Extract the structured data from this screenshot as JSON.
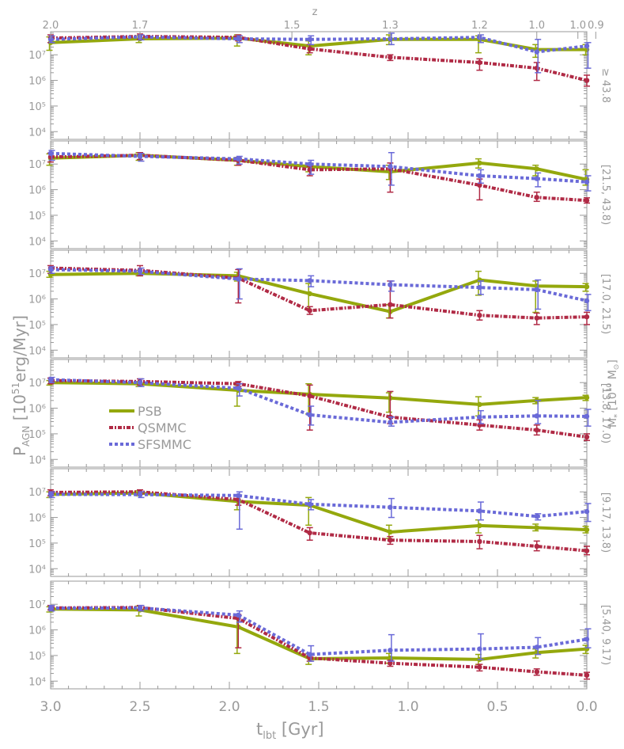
{
  "figure": {
    "y_axis_label_main": "P",
    "y_axis_label_sub": "AGN",
    "y_axis_label_rest_a": " [10",
    "y_axis_label_sup": "51",
    "y_axis_label_rest_b": "erg/Myr]",
    "x_axis_label_main": "t",
    "x_axis_label_sub": "lbt",
    "x_axis_label_rest": " [Gyr]",
    "top_axis_label": "z",
    "mass_label_main": "M",
    "mass_label_sub": "*",
    "mass_label_rest": " [10",
    "mass_label_sup": "10",
    "mass_label_unit": " M",
    "mass_label_sun": "⊙",
    "mass_label_close": "]",
    "colors": {
      "axis": "#999999",
      "PSB": "#94a80d",
      "QSMMC": "#b02a45",
      "SFSMMC": "#6a6ad8"
    }
  },
  "chart_data": {
    "type": "line",
    "x_label": "t_lbt [Gyr]",
    "y_label": "P_AGN [10^51 erg/Myr]",
    "side_label": "M_* [10^10 M_sun]",
    "x_range": [
      3.0,
      0.0
    ],
    "x_ticks": [
      "3.0",
      "2.5",
      "2.0",
      "1.5",
      "1.0",
      "0.5",
      "0.0"
    ],
    "x_tick_values": [
      3.0,
      2.5,
      2.0,
      1.5,
      1.0,
      0.5,
      0.0
    ],
    "top_axis": {
      "label": "z",
      "ticks": [
        {
          "t": 3.0,
          "label": "2.0"
        },
        {
          "t": 2.5,
          "label": "1.7"
        },
        {
          "t": 1.65,
          "label": "1.5"
        },
        {
          "t": 1.1,
          "label": "1.3"
        },
        {
          "t": 0.6,
          "label": "1.2"
        },
        {
          "t": 0.28,
          "label": "1.0"
        },
        {
          "t": 0.05,
          "label": "1.0"
        },
        {
          "t": -0.05,
          "label": "0.9"
        }
      ]
    },
    "y_scale": "log",
    "y_range": [
      5000,
      80000000
    ],
    "y_ticks": [
      "10⁴",
      "10⁵",
      "10⁶",
      "10⁷"
    ],
    "y_tick_values": [
      10000,
      100000,
      1000000,
      10000000
    ],
    "legend": {
      "placement": "middle-left (panel 4)",
      "entries": [
        "PSB",
        "QSMMC",
        "SFSMMC"
      ]
    },
    "x": [
      3.0,
      2.5,
      1.95,
      1.55,
      1.1,
      0.6,
      0.28,
      0.0
    ],
    "panels": [
      {
        "mass_bin": "≥ 43.8",
        "series": [
          {
            "name": "PSB",
            "values": [
              30000000,
              42000000,
              45000000,
              22000000,
              40000000,
              40000000,
              16000000,
              16000000
            ],
            "err": [
              [
                15000000,
                50000000
              ],
              [
                30000000,
                55000000
              ],
              [
                22000000,
                60000000
              ],
              [
                10000000,
                35000000
              ],
              [
                25000000,
                60000000
              ],
              [
                12000000,
                55000000
              ],
              [
                8000000,
                25000000
              ],
              [
                10000000,
                25000000
              ]
            ]
          },
          {
            "name": "QSMMC",
            "values": [
              45000000,
              52000000,
              48000000,
              17000000,
              8000000,
              5000000,
              3000000,
              1000000
            ],
            "err": [
              [
                30000000,
                60000000
              ],
              [
                40000000,
                65000000
              ],
              [
                35000000,
                60000000
              ],
              [
                12000000,
                25000000
              ],
              [
                6000000,
                10000000
              ],
              [
                2500000,
                7000000
              ],
              [
                1000000,
                5000000
              ],
              [
                600000,
                1600000
              ]
            ]
          },
          {
            "name": "SFSMMC",
            "values": [
              40000000,
              50000000,
              42000000,
              40000000,
              42000000,
              48000000,
              13000000,
              22000000
            ],
            "err": [
              [
                30000000,
                55000000
              ],
              [
                38000000,
                60000000
              ],
              [
                30000000,
                55000000
              ],
              [
                25000000,
                55000000
              ],
              [
                25000000,
                70000000
              ],
              [
                30000000,
                60000000
              ],
              [
                2000000,
                40000000
              ],
              [
                3000000,
                30000000
              ]
            ]
          }
        ]
      },
      {
        "mass_bin": "[21.5, 43.8)",
        "series": [
          {
            "name": "PSB",
            "values": [
              17000000,
              22000000,
              14000000,
              8000000,
              5000000,
              11000000,
              6500000,
              2500000
            ],
            "err": [
              [
                9000000,
                25000000
              ],
              [
                14000000,
                28000000
              ],
              [
                9000000,
                18000000
              ],
              [
                5000000,
                11000000
              ],
              [
                2500000,
                9000000
              ],
              [
                7000000,
                16000000
              ],
              [
                3500000,
                9000000
              ],
              [
                1500000,
                6000000
              ]
            ]
          },
          {
            "name": "QSMMC",
            "values": [
              19000000,
              22000000,
              14000000,
              6000000,
              6500000,
              1500000,
              500000,
              380000
            ],
            "err": [
              [
                12000000,
                27000000
              ],
              [
                15000000,
                28000000
              ],
              [
                9000000,
                18000000
              ],
              [
                3500000,
                8000000
              ],
              [
                800000,
                11000000
              ],
              [
                400000,
                2600000
              ],
              [
                350000,
                800000
              ],
              [
                300000,
                480000
              ]
            ]
          },
          {
            "name": "SFSMMC",
            "values": [
              26000000,
              20000000,
              16000000,
              10000000,
              8000000,
              3500000,
              2700000,
              2000000
            ],
            "err": [
              [
                14000000,
                34000000
              ],
              [
                13000000,
                26000000
              ],
              [
                10000000,
                20000000
              ],
              [
                4000000,
                14000000
              ],
              [
                1500000,
                28000000
              ],
              [
                1800000,
                6000000
              ],
              [
                1300000,
                4500000
              ],
              [
                900000,
                3500000
              ]
            ]
          }
        ]
      },
      {
        "mass_bin": "[17.0, 21.5)",
        "series": [
          {
            "name": "PSB",
            "values": [
              9000000,
              10000000,
              8000000,
              1600000,
              320000,
              5500000,
              3200000,
              3000000
            ],
            "err": [
              [
                7000000,
                12000000
              ],
              [
                8000000,
                13000000
              ],
              [
                5000000,
                11000000
              ],
              [
                400000,
                4000000
              ],
              [
                180000,
                600000
              ],
              [
                1400000,
                12000000
              ],
              [
                300000,
                5000000
              ],
              [
                2000000,
                4000000
              ]
            ]
          },
          {
            "name": "QSMMC",
            "values": [
              16000000,
              13000000,
              6500000,
              350000,
              600000,
              230000,
              180000,
              200000
            ],
            "err": [
              [
                10000000,
                20000000
              ],
              [
                8000000,
                20000000
              ],
              [
                700000,
                14000000
              ],
              [
                250000,
                500000
              ],
              [
                180000,
                5000000
              ],
              [
                150000,
                350000
              ],
              [
                100000,
                280000
              ],
              [
                100000,
                300000
              ]
            ]
          },
          {
            "name": "SFSMMC",
            "values": [
              14000000,
              12000000,
              6000000,
              5200000,
              3600000,
              2800000,
              2300000,
              850000
            ],
            "err": [
              [
                10000000,
                18000000
              ],
              [
                9000000,
                16000000
              ],
              [
                1000000,
                15000000
              ],
              [
                3000000,
                8000000
              ],
              [
                2000000,
                5000000
              ],
              [
                1500000,
                5000000
              ],
              [
                400000,
                5500000
              ],
              [
                350000,
                1500000
              ]
            ]
          }
        ]
      },
      {
        "mass_bin": "[13.8, 17.0)",
        "series": [
          {
            "name": "PSB",
            "values": [
              10000000,
              9000000,
              5000000,
              3500000,
              2500000,
              1400000,
              2000000,
              2600000
            ],
            "err": [
              [
                8000000,
                12000000
              ],
              [
                7000000,
                11000000
              ],
              [
                1200000,
                8000000
              ],
              [
                600000,
                9000000
              ],
              [
                700000,
                4000000
              ],
              [
                500000,
                2800000
              ],
              [
                1500000,
                2600000
              ],
              [
                2000000,
                3200000
              ]
            ]
          },
          {
            "name": "QSMMC",
            "values": [
              12000000,
              11000000,
              9000000,
              3000000,
              450000,
              220000,
              140000,
              75000
            ],
            "err": [
              [
                9000000,
                15000000
              ],
              [
                8000000,
                14000000
              ],
              [
                7000000,
                11000000
              ],
              [
                140000,
                8000000
              ],
              [
                250000,
                4500000
              ],
              [
                140000,
                350000
              ],
              [
                90000,
                220000
              ],
              [
                55000,
                100000
              ]
            ]
          },
          {
            "name": "SFSMMC",
            "values": [
              13000000,
              10000000,
              6000000,
              550000,
              280000,
              450000,
              500000,
              480000
            ],
            "err": [
              [
                10000000,
                16000000
              ],
              [
                7000000,
                14000000
              ],
              [
                3000000,
                9000000
              ],
              [
                220000,
                1200000
              ],
              [
                200000,
                450000
              ],
              [
                250000,
                800000
              ],
              [
                250000,
                2000000
              ],
              [
                200000,
                900000
              ]
            ]
          }
        ]
      },
      {
        "mass_bin": "[9.17, 13.8)",
        "series": [
          {
            "name": "PSB",
            "values": [
              8000000,
              9000000,
              4200000,
              3000000,
              270000,
              480000,
              400000,
              330000
            ],
            "err": [
              [
                6000000,
                10000000
              ],
              [
                7000000,
                11000000
              ],
              [
                2000000,
                7000000
              ],
              [
                500000,
                6000000
              ],
              [
                150000,
                500000
              ],
              [
                250000,
                800000
              ],
              [
                300000,
                550000
              ],
              [
                250000,
                450000
              ]
            ]
          },
          {
            "name": "QSMMC",
            "values": [
              9500000,
              10000000,
              5000000,
              250000,
              130000,
              115000,
              75000,
              50000
            ],
            "err": [
              [
                7000000,
                12000000
              ],
              [
                8000000,
                12000000
              ],
              [
                3000000,
                7000000
              ],
              [
                130000,
                400000
              ],
              [
                90000,
                180000
              ],
              [
                60000,
                200000
              ],
              [
                50000,
                120000
              ],
              [
                35000,
                75000
              ]
            ]
          },
          {
            "name": "SFSMMC",
            "values": [
              8000000,
              7800000,
              7200000,
              3300000,
              2500000,
              1800000,
              1100000,
              1700000
            ],
            "err": [
              [
                6000000,
                10000000
              ],
              [
                6000000,
                10000000
              ],
              [
                350000,
                10000000
              ],
              [
                2000000,
                5000000
              ],
              [
                1000000,
                5500000
              ],
              [
                800000,
                4000000
              ],
              [
                800000,
                1400000
              ],
              [
                700000,
                3500000
              ]
            ]
          }
        ]
      },
      {
        "mass_bin": "[5.40, 9.17)",
        "series": [
          {
            "name": "PSB",
            "values": [
              6500000,
              6000000,
              1300000,
              75000,
              80000,
              70000,
              130000,
              180000
            ],
            "err": [
              [
                5000000,
                8000000
              ],
              [
                3500000,
                8500000
              ],
              [
                120000,
                3500000
              ],
              [
                45000,
                120000
              ],
              [
                50000,
                120000
              ],
              [
                45000,
                110000
              ],
              [
                80000,
                180000
              ],
              [
                120000,
                250000
              ]
            ]
          },
          {
            "name": "QSMMC",
            "values": [
              7200000,
              7500000,
              2800000,
              80000,
              50000,
              35000,
              23000,
              17000
            ],
            "err": [
              [
                6000000,
                9000000
              ],
              [
                6000000,
                9000000
              ],
              [
                200000,
                4000000
              ],
              [
                60000,
                100000
              ],
              [
                38000,
                65000
              ],
              [
                25000,
                45000
              ],
              [
                17000,
                30000
              ],
              [
                12000,
                22000
              ]
            ]
          },
          {
            "name": "SFSMMC",
            "values": [
              7000000,
              7200000,
              3800000,
              110000,
              160000,
              180000,
              210000,
              430000
            ],
            "err": [
              [
                5500000,
                9000000
              ],
              [
                5500000,
                9000000
              ],
              [
                2000000,
                5500000
              ],
              [
                60000,
                240000
              ],
              [
                60000,
                650000
              ],
              [
                70000,
                700000
              ],
              [
                110000,
                500000
              ],
              [
                200000,
                1100000
              ]
            ]
          }
        ]
      }
    ]
  }
}
